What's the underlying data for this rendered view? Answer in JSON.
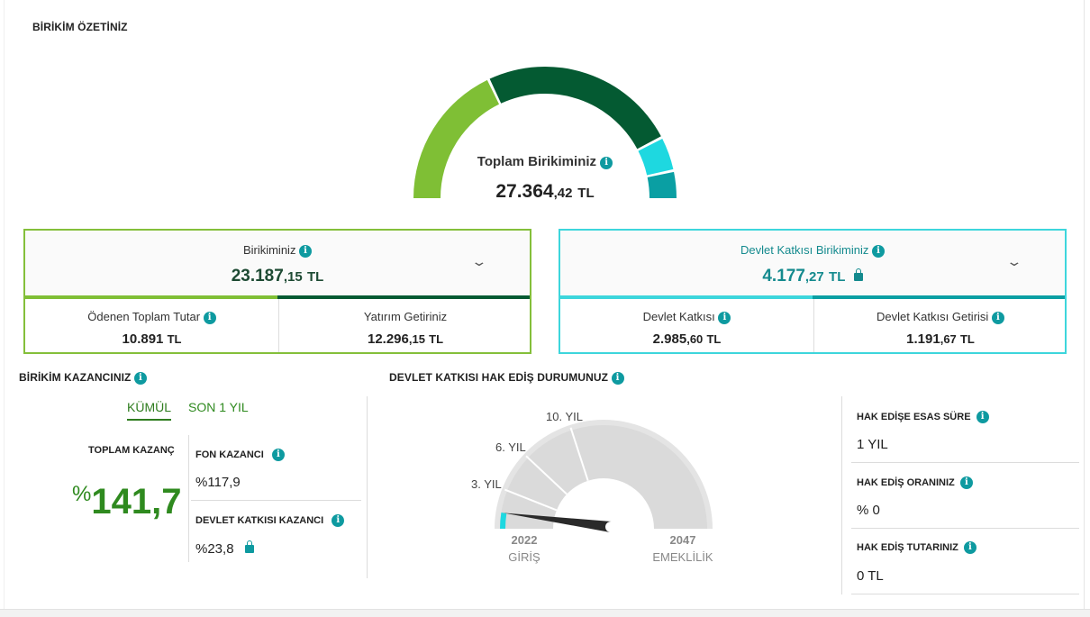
{
  "summary_title": "BİRİKİM ÖZETİNİZ",
  "total": {
    "label": "Toplam Birikiminiz",
    "value_int": "27.364",
    "value_dec": ",42",
    "currency": "TL",
    "gauge_segments": [
      {
        "fraction": 0.3585,
        "color": "#7fbf35"
      },
      {
        "fraction": 0.4889,
        "color": "#045a32"
      },
      {
        "fraction": 0.0853,
        "color": "#1ed8e0"
      },
      {
        "fraction": 0.0673,
        "color": "#0a9fa3"
      }
    ]
  },
  "birikim_card": {
    "title": "Birikiminiz",
    "value_int": "23.187",
    "value_dec": ",15",
    "currency": "TL",
    "bar_colors": [
      "#7fbf35",
      "#045a32"
    ],
    "bar_split": 0.5,
    "cells": [
      {
        "title": "Ödenen Toplam Tutar",
        "value_int": "10.891",
        "value_dec": "",
        "currency": "TL",
        "info": true
      },
      {
        "title": "Yatırım Getiriniz",
        "value_int": "12.296",
        "value_dec": ",15",
        "currency": "TL",
        "info": false
      }
    ]
  },
  "devlet_card": {
    "title": "Devlet Katkısı Birikiminiz",
    "value_int": "4.177",
    "value_dec": ",27",
    "currency": "TL",
    "bar_colors": [
      "#3dd6dc",
      "#0a9fa3"
    ],
    "bar_split": 0.5,
    "cells": [
      {
        "title": "Devlet Katkısı",
        "value_int": "2.985",
        "value_dec": ",60",
        "currency": "TL",
        "info": true
      },
      {
        "title": "Devlet Katkısı Getirisi",
        "value_int": "1.191",
        "value_dec": ",67",
        "currency": "TL",
        "info": true
      }
    ]
  },
  "kazanc": {
    "title": "BİRİKİM KAZANCINIZ",
    "tabs": [
      "KÜMÜL",
      "SON 1 YIL"
    ],
    "toplam_label": "TOPLAM KAZANÇ",
    "toplam_pct_symbol": "%",
    "toplam_value": "141,7",
    "fon_label": "FON KAZANCI",
    "fon_value": "%117,9",
    "devlet_label": "DEVLET KATKISI KAZANCI",
    "devlet_value": "%23,8"
  },
  "hakedis": {
    "title": "DEVLET KATKISI HAK EDİŞ DURUMUNUZ",
    "stages": [
      "3. YIL",
      "6. YIL",
      "10. YIL"
    ],
    "start_year": "2022",
    "start_label": "GİRİŞ",
    "end_year": "2047",
    "end_label": "EMEKLİLİK",
    "progress_fraction": 0.05,
    "accent_color": "#1ed8e0",
    "items": [
      {
        "label": "HAK EDİŞE ESAS SÜRE",
        "value": "1 YIL"
      },
      {
        "label": "HAK EDİŞ ORANINIZ",
        "value": "% 0"
      },
      {
        "label": "HAK EDİŞ TUTARINIZ",
        "value": "0 TL"
      }
    ]
  }
}
